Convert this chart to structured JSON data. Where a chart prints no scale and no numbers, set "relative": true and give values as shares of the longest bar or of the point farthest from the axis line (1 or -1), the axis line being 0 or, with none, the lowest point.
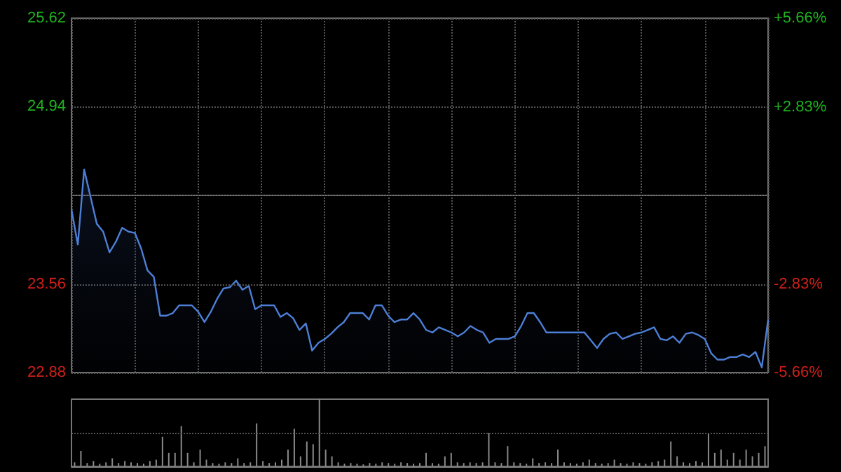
{
  "chart_data": [
    {
      "type": "area",
      "categories": [
        null,
        null,
        null,
        null,
        null,
        null,
        null,
        null,
        null,
        null,
        null,
        null,
        null,
        null,
        null,
        null,
        null,
        null,
        null,
        null,
        null,
        null,
        null,
        null,
        null,
        null,
        null,
        null,
        null,
        null,
        null,
        null,
        null,
        null,
        null,
        null,
        null,
        null,
        null,
        null,
        null,
        null,
        null,
        null,
        null,
        null,
        null,
        null,
        null,
        null,
        null,
        null,
        null,
        null,
        null,
        null,
        null,
        null,
        null,
        null,
        null,
        null,
        null,
        null,
        null,
        null,
        null,
        null,
        null,
        null,
        null,
        null,
        null,
        null,
        null,
        null,
        null,
        null,
        null,
        null,
        null,
        null,
        null,
        null,
        null,
        null,
        null,
        null,
        null,
        null,
        null,
        null,
        null,
        null,
        null,
        null,
        null,
        null,
        null,
        null,
        null,
        null,
        null,
        null,
        null,
        null,
        null,
        null,
        null,
        null,
        null
      ],
      "series": [
        {
          "color": "#4d7fd6",
          "values": [
            24.14,
            23.87,
            24.45,
            24.24,
            24.03,
            23.97,
            23.81,
            23.89,
            24.0,
            23.97,
            23.96,
            23.84,
            23.67,
            23.62,
            23.32,
            23.32,
            23.34,
            23.4,
            23.4,
            23.4,
            23.35,
            23.27,
            23.35,
            23.45,
            23.53,
            23.54,
            23.59,
            23.52,
            23.55,
            23.37,
            23.4,
            23.4,
            23.4,
            23.31,
            23.34,
            23.3,
            23.21,
            23.26,
            23.05,
            23.11,
            23.14,
            23.18,
            23.23,
            23.27,
            23.34,
            23.34,
            23.34,
            23.29,
            23.4,
            23.4,
            23.32,
            23.27,
            23.29,
            23.29,
            23.34,
            23.29,
            23.21,
            23.19,
            23.23,
            23.21,
            23.19,
            23.16,
            23.19,
            23.24,
            23.21,
            23.19,
            23.11,
            23.14,
            23.14,
            23.14,
            23.16,
            23.24,
            23.34,
            23.34,
            23.27,
            23.19,
            23.19,
            23.19,
            23.19,
            23.19,
            23.19,
            23.19,
            23.13,
            23.07,
            23.14,
            23.18,
            23.19,
            23.14,
            23.16,
            23.18,
            23.19,
            23.21,
            23.23,
            23.14,
            23.13,
            23.16,
            23.11,
            23.18,
            23.19,
            23.17,
            23.14,
            23.03,
            22.98,
            22.98,
            23.0,
            23.0,
            23.02,
            23.0,
            23.04,
            22.92,
            23.29
          ]
        }
      ],
      "ylim": [
        22.88,
        25.62
      ],
      "yticks": [
        22.88,
        23.56,
        {
          "value": 24.25,
          "label": null
        },
        24.94,
        25.62
      ],
      "y2lim": [
        -5.66,
        5.66
      ],
      "y2ticks": [
        {
          "value": -5.66,
          "label": "-5.66%"
        },
        {
          "value": -2.83,
          "label": "-2.83%"
        },
        {
          "value": 0,
          "label": null
        },
        {
          "value": 2.83,
          "label": "+2.83%"
        },
        {
          "value": 5.66,
          "label": "+5.66%"
        }
      ],
      "grid": true
    },
    {
      "type": "bar",
      "relative": true,
      "ref_lines": [
        {
          "axis": "y",
          "value": 0.5,
          "line_style": "dotted"
        }
      ],
      "categories": [
        null,
        null,
        null,
        null,
        null,
        null,
        null,
        null,
        null,
        null,
        null,
        null,
        null,
        null,
        null,
        null,
        null,
        null,
        null,
        null,
        null,
        null,
        null,
        null,
        null,
        null,
        null,
        null,
        null,
        null,
        null,
        null,
        null,
        null,
        null,
        null,
        null,
        null,
        null,
        null,
        null,
        null,
        null,
        null,
        null,
        null,
        null,
        null,
        null,
        null,
        null,
        null,
        null,
        null,
        null,
        null,
        null,
        null,
        null,
        null,
        null,
        null,
        null,
        null,
        null,
        null,
        null,
        null,
        null,
        null,
        null,
        null,
        null,
        null,
        null,
        null,
        null,
        null,
        null,
        null,
        null,
        null,
        null,
        null,
        null,
        null,
        null,
        null,
        null,
        null,
        null,
        null,
        null,
        null,
        null,
        null,
        null,
        null,
        null,
        null,
        null,
        null,
        null,
        null,
        null,
        null,
        null,
        null,
        null,
        null,
        null
      ],
      "series": [
        {
          "color": "#8a8a8a",
          "values": [
            0.06,
            0.23,
            0.05,
            0.08,
            0.04,
            0.06,
            0.12,
            0.05,
            0.08,
            0.06,
            0.05,
            0.04,
            0.08,
            0.1,
            0.44,
            0.2,
            0.2,
            0.6,
            0.2,
            0.06,
            0.25,
            0.1,
            0.05,
            0.04,
            0.06,
            0.05,
            0.12,
            0.05,
            0.06,
            0.64,
            0.08,
            0.05,
            0.06,
            0.1,
            0.25,
            0.56,
            0.15,
            0.37,
            0.33,
            1,
            0.25,
            0.15,
            0.06,
            0.04,
            0.05,
            0.04,
            0.03,
            0.05,
            0.04,
            0.06,
            0.05,
            0.04,
            0.06,
            0.05,
            0.04,
            0.05,
            0.2,
            0.05,
            0.04,
            0.15,
            0.2,
            0.06,
            0.05,
            0.06,
            0.05,
            0.06,
            0.5,
            0.06,
            0.05,
            0.3,
            0.06,
            0.05,
            0.04,
            0.12,
            0.05,
            0.06,
            0.05,
            0.25,
            0.06,
            0.05,
            0.04,
            0.06,
            0.1,
            0.05,
            0.04,
            0.05,
            0.1,
            0.05,
            0.04,
            0.06,
            0.05,
            0.04,
            0.06,
            0.08,
            0.1,
            0.37,
            0.15,
            0.06,
            0.05,
            0.08,
            0.06,
            0.5,
            0.2,
            0.25,
            0.1,
            0.2,
            0.1,
            0.25,
            0.15,
            0.2,
            0.3
          ]
        }
      ]
    }
  ]
}
